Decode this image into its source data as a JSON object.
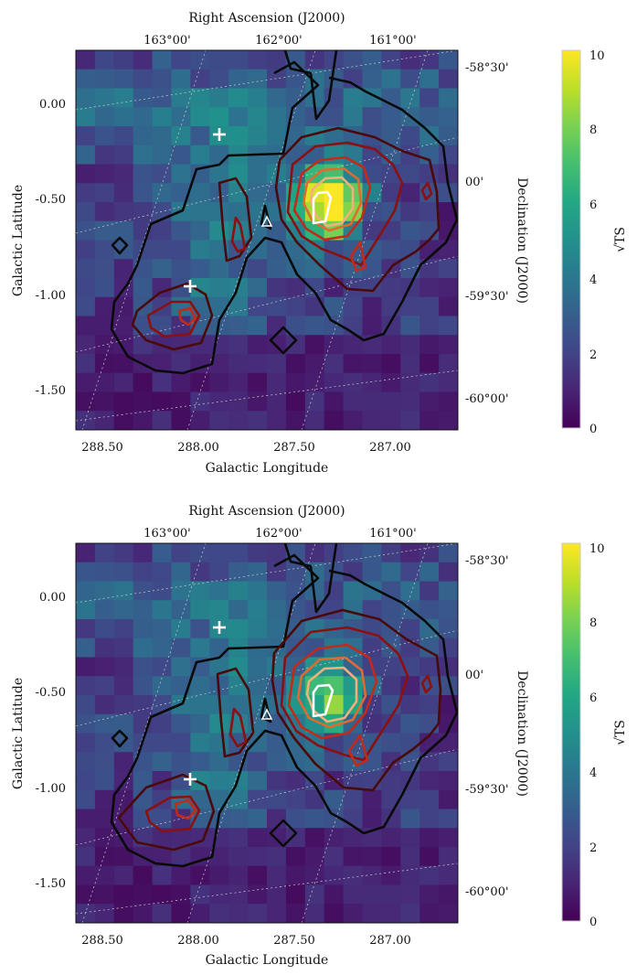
{
  "panels": [
    {
      "id": "top",
      "top_axis_label": "Right Ascension (J2000)",
      "bottom_axis_label": "Galactic Longitude",
      "left_axis_label": "Galactic Latitude",
      "right_axis_label": "Declination (J2000)",
      "ra_ticks": [
        "163°00'",
        "162°00'",
        "161°00'"
      ],
      "dec_ticks": [
        "-58°30'",
        "00'",
        "-59°30'",
        "-60°00'"
      ],
      "colorbar_label": "√TS"
    },
    {
      "id": "bottom",
      "top_axis_label": "Right Ascension (J2000)",
      "bottom_axis_label": "Galactic Longitude",
      "left_axis_label": "Galactic Latitude",
      "right_axis_label": "Declination (J2000)",
      "ra_ticks": [
        "163°00'",
        "162°00'",
        "161°00'"
      ],
      "dec_ticks": [
        "-58°30'",
        "00'",
        "-59°30'",
        "-60°00'"
      ],
      "colorbar_label": "√TS"
    }
  ],
  "chart_data": [
    {
      "type": "heatmap",
      "xlabel": "Galactic Longitude",
      "ylabel": "Galactic Latitude",
      "x_ticks": [
        "288.50",
        "288.00",
        "287.50",
        "287.00"
      ],
      "x_tick_values": [
        288.5,
        288.0,
        287.5,
        287.0
      ],
      "y_ticks": [
        "0.00",
        "-0.50",
        "-1.00",
        "-1.50"
      ],
      "y_tick_values": [
        0.0,
        -0.5,
        -1.0,
        -1.5
      ],
      "xlim": [
        288.75,
        286.65
      ],
      "ylim": [
        -1.75,
        0.25
      ],
      "colorbar": {
        "label": "√TS",
        "ticks": [
          "0",
          "2",
          "4",
          "6",
          "8",
          "10"
        ],
        "tick_values": [
          0,
          2,
          4,
          6,
          8,
          10
        ],
        "range": [
          0,
          10
        ],
        "colormap": "viridis"
      },
      "peak": {
        "l": 287.35,
        "b": -0.55,
        "sqrt_ts": 10
      },
      "contour_colors": [
        "#0a0a0a",
        "#4a0a0a",
        "#8b1010",
        "#c22a1a",
        "#e06a30",
        "#f3b07a",
        "#ffffff"
      ],
      "markers": [
        {
          "shape": "plus",
          "l": 287.87,
          "b": -0.16
        },
        {
          "shape": "plus",
          "l": 288.01,
          "b": -0.96
        },
        {
          "shape": "triangle",
          "l": 287.6,
          "b": -0.62
        }
      ]
    },
    {
      "type": "heatmap",
      "xlabel": "Galactic Longitude",
      "ylabel": "Galactic Latitude",
      "x_ticks": [
        "288.50",
        "288.00",
        "287.50",
        "287.00"
      ],
      "x_tick_values": [
        288.5,
        288.0,
        287.5,
        287.0
      ],
      "y_ticks": [
        "0.00",
        "-0.50",
        "-1.00",
        "-1.50"
      ],
      "y_tick_values": [
        0.0,
        -0.5,
        -1.0,
        -1.5
      ],
      "xlim": [
        288.75,
        286.65
      ],
      "ylim": [
        -1.75,
        0.25
      ],
      "colorbar": {
        "label": "√TS",
        "ticks": [
          "0",
          "2",
          "4",
          "6",
          "8",
          "10"
        ],
        "tick_values": [
          0,
          2,
          4,
          6,
          8,
          10
        ],
        "range": [
          0,
          10
        ],
        "colormap": "viridis"
      },
      "peak": {
        "l": 287.35,
        "b": -0.55,
        "sqrt_ts": 6
      },
      "contour_colors": [
        "#0a0a0a",
        "#4a0a0a",
        "#8b1010",
        "#c22a1a",
        "#e06a30",
        "#f3b07a",
        "#ffffff"
      ],
      "markers": [
        {
          "shape": "plus",
          "l": 287.87,
          "b": -0.16
        },
        {
          "shape": "plus",
          "l": 288.01,
          "b": -0.96
        },
        {
          "shape": "triangle",
          "l": 287.6,
          "b": -0.62
        }
      ]
    }
  ]
}
